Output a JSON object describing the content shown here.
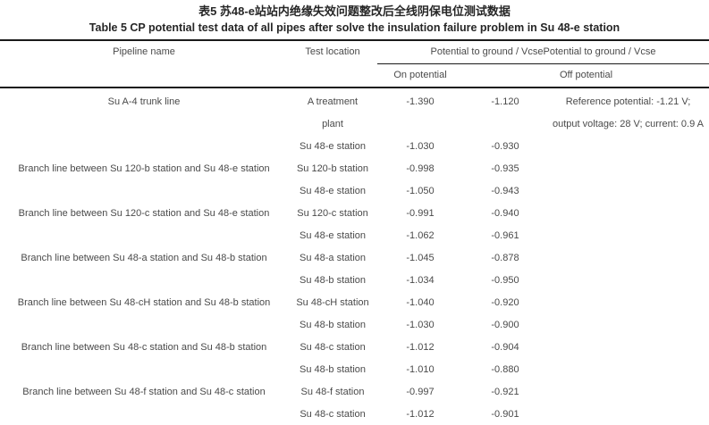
{
  "caption": {
    "zh": "表5 苏48-e站站内绝缘失效问题整改后全线阴保电位测试数据",
    "en": "Table 5 CP potential test data of all pipes after solve the insulation failure problem in Su 48-e station"
  },
  "table": {
    "headers": {
      "pipeline_name": "Pipeline name",
      "test_location": "Test location",
      "potential_group_1": "Potential to ground / Vcse",
      "potential_group_2": "Potential to ground / Vcse",
      "on_potential": "On potential",
      "off_potential": "Off potential"
    },
    "groups": [
      {
        "pipeline": "Su A-4 trunk line",
        "rows": [
          {
            "location": "A treatment plant",
            "on": "-1.390",
            "off": "-1.120"
          },
          {
            "location": "Su 48-e station",
            "on": "-1.030",
            "off": "-0.930"
          }
        ],
        "note_lines": [
          "Reference potential: -1.21 V;",
          "output voltage: 28 V; current: 0.9 A"
        ]
      },
      {
        "pipeline": "Branch line between Su 120-b station and Su 48-e station",
        "rows": [
          {
            "location": "Su 120-b station",
            "on": "-0.998",
            "off": "-0.935"
          },
          {
            "location": "Su 48-e station",
            "on": "-1.050",
            "off": "-0.943"
          }
        ],
        "note_lines": []
      },
      {
        "pipeline": "Branch line between Su 120-c station and Su 48-e station",
        "rows": [
          {
            "location": "Su 120-c station",
            "on": "-0.991",
            "off": "-0.940"
          },
          {
            "location": "Su 48-e station",
            "on": "-1.062",
            "off": "-0.961"
          }
        ],
        "note_lines": []
      },
      {
        "pipeline": "Branch line between Su 48-a station and Su 48-b station",
        "rows": [
          {
            "location": "Su 48-a station",
            "on": "-1.045",
            "off": "-0.878"
          },
          {
            "location": "Su 48-b station",
            "on": "-1.034",
            "off": "-0.950"
          }
        ],
        "note_lines": []
      },
      {
        "pipeline": "Branch line between Su 48-cH station and Su 48-b station",
        "rows": [
          {
            "location": "Su 48-cH station",
            "on": "-1.040",
            "off": "-0.920"
          },
          {
            "location": "Su 48-b station",
            "on": "-1.030",
            "off": "-0.900"
          }
        ],
        "note_lines": []
      },
      {
        "pipeline": "Branch line between Su 48-c station and Su 48-b station",
        "rows": [
          {
            "location": "Su 48-c station",
            "on": "-1.012",
            "off": "-0.904"
          },
          {
            "location": "Su 48-b station",
            "on": "-1.010",
            "off": "-0.880"
          }
        ],
        "note_lines": []
      },
      {
        "pipeline": "Branch line between Su 48-f station and Su 48-c station",
        "rows": [
          {
            "location": "Su 48-f station",
            "on": "-0.997",
            "off": "-0.921"
          },
          {
            "location": "Su 48-c station",
            "on": "-1.012",
            "off": "-0.901"
          }
        ],
        "note_lines": []
      }
    ]
  },
  "colors": {
    "rule": "#1a1a1a",
    "heading_text": "#262626",
    "body_text": "#4a4a4a",
    "background": "#ffffff"
  }
}
